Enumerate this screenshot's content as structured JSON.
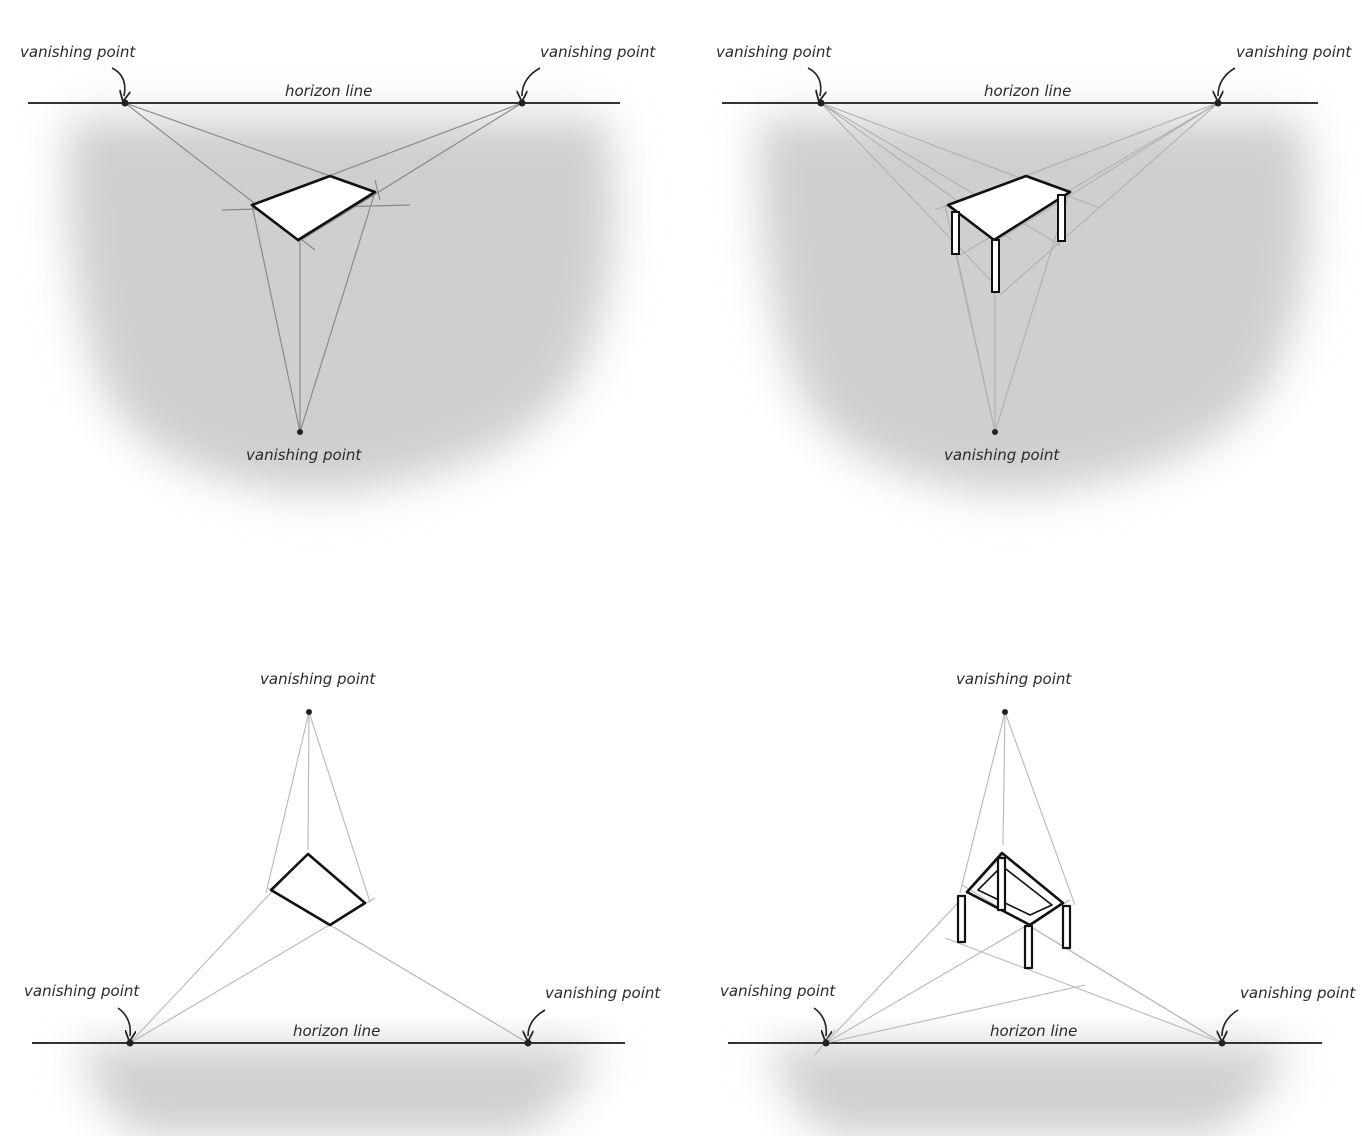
{
  "labels": {
    "vanishing_point": "vanishing point",
    "horizon_line": "horizon line"
  },
  "colors": {
    "guide_line": "#8a8a8a",
    "light_guide": "#b8b8b8",
    "ink": "#111111",
    "shade": "#cfcfcf"
  }
}
